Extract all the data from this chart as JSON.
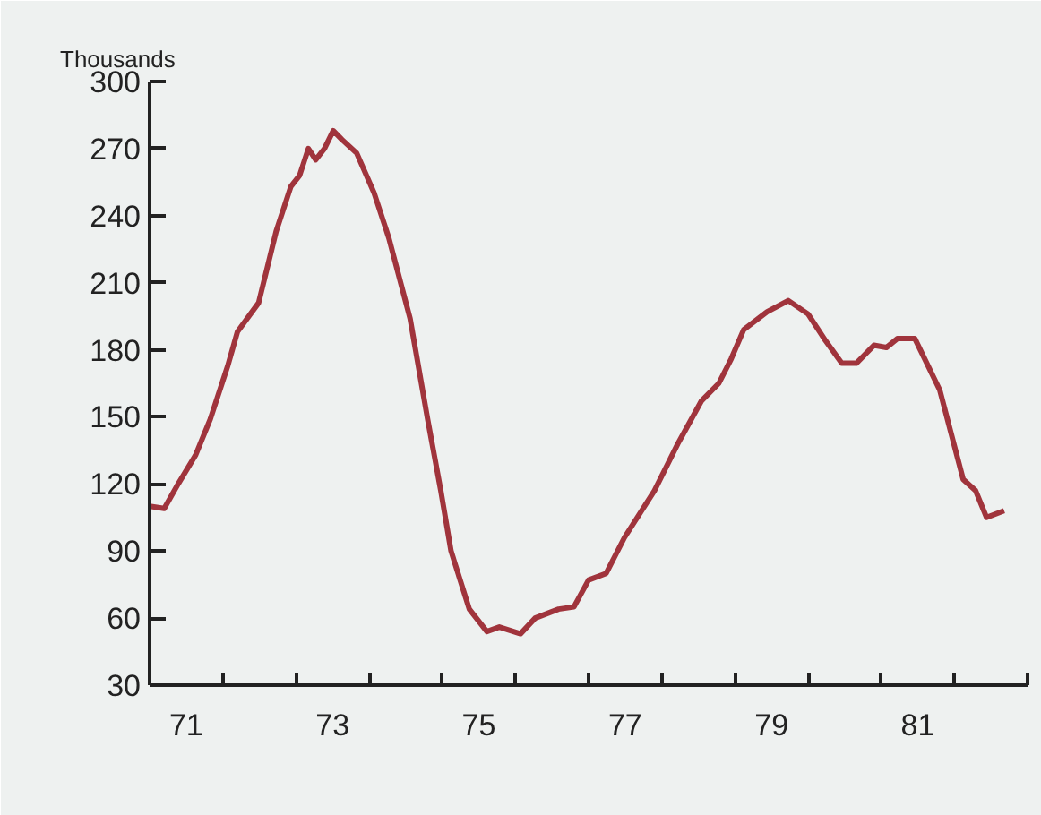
{
  "chart_data": {
    "type": "line",
    "ylabel": "Thousands",
    "x": [
      70.5,
      70.7,
      70.89,
      71.13,
      71.33,
      71.57,
      71.7,
      71.99,
      72.23,
      72.43,
      72.55,
      72.67,
      72.77,
      72.89,
      73.01,
      73.13,
      73.33,
      73.57,
      73.77,
      74.06,
      74.3,
      74.48,
      74.62,
      74.87,
      75.11,
      75.28,
      75.57,
      75.77,
      76.09,
      76.3,
      76.5,
      76.74,
      76.99,
      77.4,
      77.72,
      78.04,
      78.28,
      78.45,
      78.62,
      78.94,
      79.23,
      79.5,
      79.74,
      79.96,
      80.16,
      80.4,
      80.57,
      80.72,
      80.96,
      81.3,
      81.62,
      81.79,
      81.94,
      82.18
    ],
    "series": [
      {
        "color": "#a0343c",
        "values": [
          110,
          109,
          120,
          133,
          149,
          173,
          188,
          201,
          233,
          253,
          258,
          270,
          265,
          270,
          278,
          274,
          268,
          250,
          230,
          194,
          149,
          117,
          90,
          64,
          54,
          56,
          53,
          60,
          64,
          65,
          77,
          80,
          96,
          117,
          138,
          157,
          165,
          176,
          189,
          197,
          202,
          196,
          184,
          174,
          174,
          182,
          181,
          185,
          185,
          162,
          122,
          117,
          105,
          108
        ]
      }
    ],
    "xlim": [
      70.5,
      82.5
    ],
    "xticks": [
      {
        "value": 70.5,
        "label": null
      },
      {
        "value": 71.5,
        "label": null
      },
      {
        "value": 72.5,
        "label": null
      },
      {
        "value": 73.5,
        "label": null
      },
      {
        "value": 74.5,
        "label": null
      },
      {
        "value": 75.5,
        "label": null
      },
      {
        "value": 76.5,
        "label": null
      },
      {
        "value": 77.5,
        "label": null
      },
      {
        "value": 78.5,
        "label": null
      },
      {
        "value": 79.5,
        "label": null
      },
      {
        "value": 80.5,
        "label": null
      },
      {
        "value": 81.5,
        "label": null
      },
      {
        "value": 82.5,
        "label": null
      },
      71,
      73,
      75,
      77,
      79,
      81
    ],
    "ylim": [
      30,
      300
    ],
    "yticks": [
      30,
      60,
      90,
      120,
      150,
      180,
      210,
      240,
      270,
      300
    ],
    "grid": false,
    "marker": "none",
    "line_style": "solid"
  }
}
